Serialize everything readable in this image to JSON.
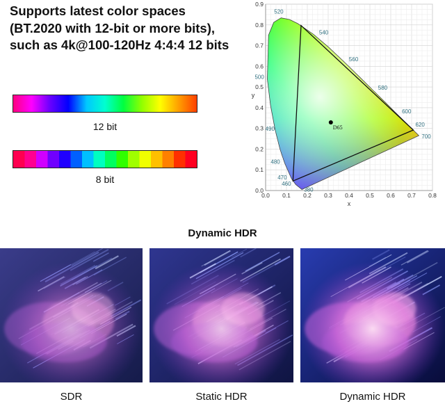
{
  "headline": "Supports latest color spaces (BT.2020 with 12-bit or more bits), such as 4k@100-120Hz 4:4:4 12 bits",
  "bars": {
    "twelve_bit_label": "12 bit",
    "eight_bit_label": "8 bit"
  },
  "chart_data": {
    "type": "scatter",
    "xlabel": "x",
    "ylabel": "y",
    "xlim": [
      0.0,
      0.8
    ],
    "ylim": [
      0.0,
      0.9
    ],
    "x_ticks": [
      "0.0",
      "0.1",
      "0.2",
      "0.3",
      "0.4",
      "0.5",
      "0.6",
      "0.7",
      "0.8"
    ],
    "y_ticks": [
      "0.0",
      "0.1",
      "0.2",
      "0.3",
      "0.4",
      "0.5",
      "0.6",
      "0.7",
      "0.8",
      "0.9"
    ],
    "grid": true,
    "spectral_locus": [
      {
        "nm": "380",
        "x": 0.1741,
        "y": 0.005
      },
      {
        "nm": "460",
        "x": 0.144,
        "y": 0.0297
      },
      {
        "nm": "470",
        "x": 0.1241,
        "y": 0.0578
      },
      {
        "nm": "480",
        "x": 0.0913,
        "y": 0.1327
      },
      {
        "nm": "490",
        "x": 0.0454,
        "y": 0.295
      },
      {
        "nm": "500",
        "x": 0.0082,
        "y": 0.5384
      },
      {
        "nm": "520",
        "x": 0.0743,
        "y": 0.8338
      },
      {
        "nm": "540",
        "x": 0.2296,
        "y": 0.7543
      },
      {
        "nm": "560",
        "x": 0.3731,
        "y": 0.6245
      },
      {
        "nm": "580",
        "x": 0.5125,
        "y": 0.4866
      },
      {
        "nm": "600",
        "x": 0.627,
        "y": 0.3725
      },
      {
        "nm": "620",
        "x": 0.6915,
        "y": 0.3083
      },
      {
        "nm": "700",
        "x": 0.7347,
        "y": 0.2653
      }
    ],
    "locus_extra_points": [
      {
        "x": 0.0687,
        "y": 0.2007
      },
      {
        "x": 0.0235,
        "y": 0.4127
      },
      {
        "x": 0.0139,
        "y": 0.7502
      },
      {
        "x": 0.0389,
        "y": 0.812
      },
      {
        "x": 0.1142,
        "y": 0.8262
      },
      {
        "x": 0.1547,
        "y": 0.8059
      },
      {
        "x": 0.3016,
        "y": 0.6923
      },
      {
        "x": 0.4441,
        "y": 0.5547
      },
      {
        "x": 0.5752,
        "y": 0.4242
      },
      {
        "x": 0.6658,
        "y": 0.334
      }
    ],
    "gamut_triangle": [
      {
        "x": 0.708,
        "y": 0.292
      },
      {
        "x": 0.17,
        "y": 0.797
      },
      {
        "x": 0.131,
        "y": 0.046
      }
    ],
    "white_point": {
      "name": "D65",
      "x": 0.3127,
      "y": 0.329
    }
  },
  "dynamic_hdr": {
    "title": "Dynamic HDR",
    "panels": [
      {
        "label": "SDR"
      },
      {
        "label": "Static HDR"
      },
      {
        "label": "Dynamic HDR"
      }
    ]
  },
  "colors": {
    "spectrum_12": [
      "#ff0080",
      "#ff00ff",
      "#6a00ff",
      "#0000ff",
      "#00c8ff",
      "#00ffd0",
      "#00ff40",
      "#90ff00",
      "#ffff00",
      "#ffa000",
      "#ff4000"
    ],
    "spectrum_8": [
      "#ff0050",
      "#ff0090",
      "#d000ff",
      "#7000ff",
      "#2000ff",
      "#0060ff",
      "#00c0ff",
      "#00ffc0",
      "#00ff60",
      "#30ff00",
      "#a0ff00",
      "#f0ff00",
      "#ffc000",
      "#ff8000",
      "#ff3000",
      "#ff0020"
    ],
    "locus_label": "#2f6f7f",
    "gamut_line": "#111111"
  }
}
